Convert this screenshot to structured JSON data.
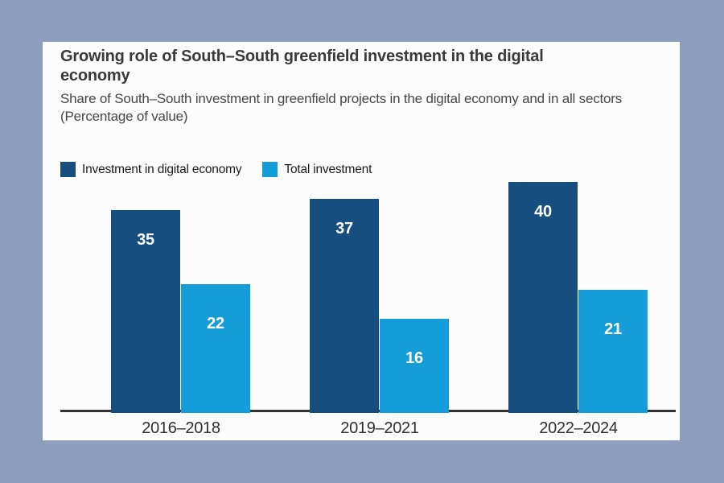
{
  "header": {
    "title": "Growing role of South–South greenfield investment in the digital economy",
    "subtitle": "Share of South–South investment in greenfield projects in the digital economy and in all sectors",
    "unit_note": "(Percentage of value)"
  },
  "legend": [
    {
      "label": "Investment in digital economy",
      "color": "#164f7f"
    },
    {
      "label": "Total investment",
      "color": "#149dd9"
    }
  ],
  "chart_data": {
    "type": "bar",
    "title": "Growing role of South–South greenfield investment in the digital economy",
    "subtitle": "Share of South–South investment in greenfield projects in the digital economy and in all sectors",
    "unit": "Percentage of value",
    "categories": [
      "2016–2018",
      "2019–2021",
      "2022–2024"
    ],
    "series": [
      {
        "name": "Investment in digital economy",
        "color": "#164f7f",
        "values": [
          35,
          37,
          40
        ]
      },
      {
        "name": "Total investment",
        "color": "#149dd9",
        "values": [
          22,
          16,
          21
        ]
      }
    ],
    "ylim": [
      0,
      40
    ],
    "grid": false,
    "y_axis_shown": false,
    "legend_position": "top-left",
    "value_labels": "inside-top"
  },
  "colors": {
    "page_background": "#8f9dbf",
    "card_background": "#fcfcfd",
    "axis": "#333333",
    "bar_value_text": "#ffffff"
  }
}
